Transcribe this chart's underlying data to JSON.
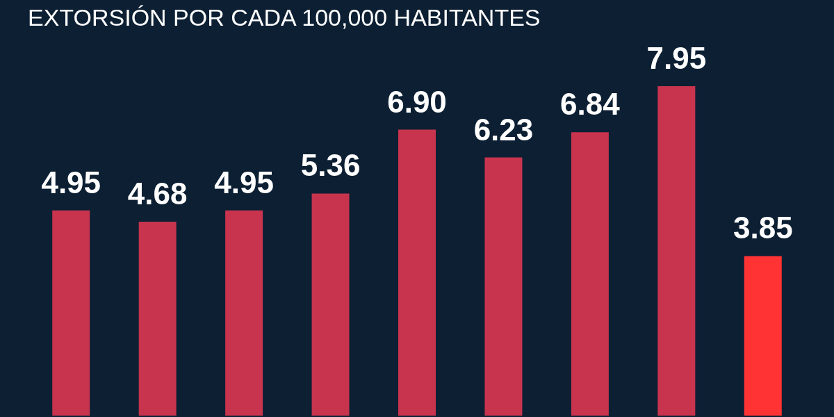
{
  "chart_data": {
    "type": "bar",
    "title": "EXTORSIÓN POR CADA 100,000 HABITANTES",
    "categories": [
      null,
      null,
      null,
      null,
      null,
      null,
      null,
      null,
      null
    ],
    "values": [
      4.95,
      4.68,
      4.95,
      5.36,
      6.9,
      6.23,
      6.84,
      7.95,
      3.85
    ],
    "colors": [
      "#c8344e",
      "#c8344e",
      "#c8344e",
      "#c8344e",
      "#c8344e",
      "#c8344e",
      "#c8344e",
      "#c8344e",
      "#ff3333"
    ],
    "value_labels": [
      "4.95",
      "4.68",
      "4.95",
      "5.36",
      "6.90",
      "6.23",
      "6.84",
      "7.95",
      "3.85"
    ]
  }
}
